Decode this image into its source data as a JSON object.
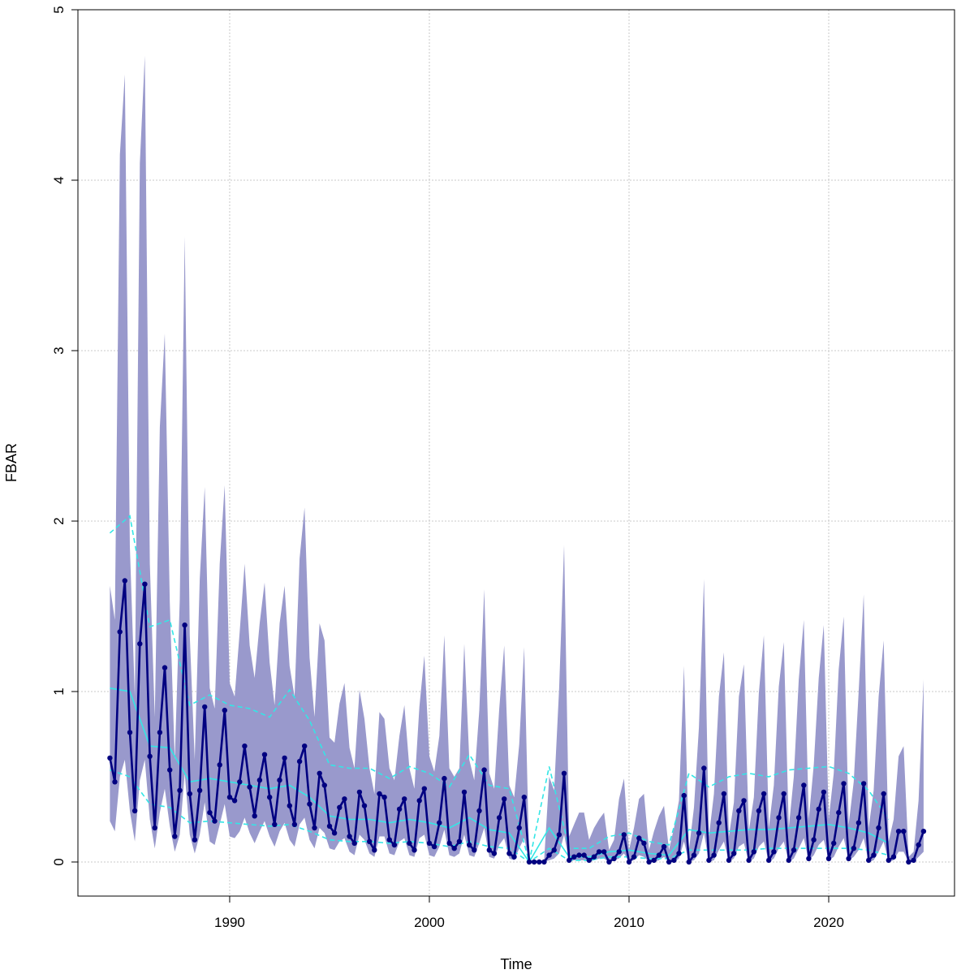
{
  "chart_data": {
    "type": "line",
    "title": "",
    "xlabel": "Time",
    "ylabel": "FBAR",
    "xlim": [
      1982.4,
      2026.3
    ],
    "ylim": [
      -0.2,
      5.0
    ],
    "x_ticks": [
      1990,
      2000,
      2010,
      2020
    ],
    "x_tick_labels": [
      "1990",
      "2000",
      "2010",
      "2020"
    ],
    "y_ticks": [
      0,
      1,
      2,
      3,
      4,
      5
    ],
    "y_tick_labels": [
      "0",
      "1",
      "2",
      "3",
      "4",
      "5"
    ],
    "grid": true,
    "legend": "none",
    "colors": {
      "band": "#9999cc",
      "main_line": "#000080",
      "smooth_lines": "#33e6e6",
      "grid": "#c8c8c8"
    },
    "series": [
      {
        "kind": "quarterly_points_line",
        "x": [
          1984.0,
          1984.25,
          1984.5,
          1984.75,
          1985.0,
          1985.25,
          1985.5,
          1985.75,
          1986.0,
          1986.25,
          1986.5,
          1986.75,
          1987.0,
          1987.25,
          1987.5,
          1987.75,
          1988.0,
          1988.25,
          1988.5,
          1988.75,
          1989.0,
          1989.25,
          1989.5,
          1989.75,
          1990.0,
          1990.25,
          1990.5,
          1990.75,
          1991.0,
          1991.25,
          1991.5,
          1991.75,
          1992.0,
          1992.25,
          1992.5,
          1992.75,
          1993.0,
          1993.25,
          1993.5,
          1993.75,
          1994.0,
          1994.25,
          1994.5,
          1994.75,
          1995.0,
          1995.25,
          1995.5,
          1995.75,
          1996.0,
          1996.25,
          1996.5,
          1996.75,
          1997.0,
          1997.25,
          1997.5,
          1997.75,
          1998.0,
          1998.25,
          1998.5,
          1998.75,
          1999.0,
          1999.25,
          1999.5,
          1999.75,
          2000.0,
          2000.25,
          2000.5,
          2000.75,
          2001.0,
          2001.25,
          2001.5,
          2001.75,
          2002.0,
          2002.25,
          2002.5,
          2002.75,
          2003.0,
          2003.25,
          2003.5,
          2003.75,
          2004.0,
          2004.25,
          2004.5,
          2004.75,
          2005.0,
          2005.25,
          2005.5,
          2005.75,
          2006.0,
          2006.25,
          2006.5,
          2006.75,
          2007.0,
          2007.25,
          2007.5,
          2007.75,
          2008.0,
          2008.25,
          2008.5,
          2008.75,
          2009.0,
          2009.25,
          2009.5,
          2009.75,
          2010.0,
          2010.25,
          2010.5,
          2010.75,
          2011.0,
          2011.25,
          2011.5,
          2011.75,
          2012.0,
          2012.25,
          2012.5,
          2012.75,
          2013.0,
          2013.25,
          2013.5,
          2013.75,
          2014.0,
          2014.25,
          2014.5,
          2014.75,
          2015.0,
          2015.25,
          2015.5,
          2015.75,
          2016.0,
          2016.25,
          2016.5,
          2016.75,
          2017.0,
          2017.25,
          2017.5,
          2017.75,
          2018.0,
          2018.25,
          2018.5,
          2018.75,
          2019.0,
          2019.25,
          2019.5,
          2019.75,
          2020.0,
          2020.25,
          2020.5,
          2020.75,
          2021.0,
          2021.25,
          2021.5,
          2021.75,
          2022.0,
          2022.25,
          2022.5,
          2022.75,
          2023.0,
          2023.25,
          2023.5,
          2023.75,
          2024.0,
          2024.25,
          2024.5,
          2024.75
        ],
        "values": [
          0.61,
          0.47,
          1.35,
          1.65,
          0.76,
          0.3,
          1.28,
          1.63,
          0.62,
          0.2,
          0.76,
          1.14,
          0.54,
          0.15,
          0.42,
          1.39,
          0.4,
          0.13,
          0.42,
          0.91,
          0.29,
          0.24,
          0.57,
          0.89,
          0.38,
          0.36,
          0.47,
          0.68,
          0.44,
          0.27,
          0.48,
          0.63,
          0.38,
          0.22,
          0.48,
          0.61,
          0.33,
          0.22,
          0.59,
          0.68,
          0.34,
          0.2,
          0.52,
          0.45,
          0.21,
          0.17,
          0.32,
          0.37,
          0.15,
          0.11,
          0.41,
          0.33,
          0.12,
          0.07,
          0.4,
          0.38,
          0.13,
          0.1,
          0.31,
          0.37,
          0.11,
          0.07,
          0.36,
          0.43,
          0.11,
          0.09,
          0.23,
          0.49,
          0.11,
          0.08,
          0.12,
          0.41,
          0.1,
          0.07,
          0.3,
          0.54,
          0.07,
          0.05,
          0.26,
          0.37,
          0.05,
          0.03,
          0.2,
          0.38,
          0.0,
          0.0,
          0.0,
          0.0,
          0.04,
          0.07,
          0.16,
          0.52,
          0.01,
          0.03,
          0.04,
          0.04,
          0.01,
          0.03,
          0.06,
          0.06,
          0.0,
          0.02,
          0.06,
          0.16,
          0.0,
          0.03,
          0.14,
          0.11,
          0.0,
          0.01,
          0.04,
          0.09,
          0.0,
          0.01,
          0.05,
          0.39,
          0.0,
          0.04,
          0.17,
          0.55,
          0.01,
          0.04,
          0.23,
          0.4,
          0.01,
          0.05,
          0.3,
          0.36,
          0.01,
          0.06,
          0.3,
          0.4,
          0.01,
          0.06,
          0.26,
          0.4,
          0.01,
          0.07,
          0.26,
          0.45,
          0.02,
          0.13,
          0.31,
          0.41,
          0.02,
          0.11,
          0.29,
          0.46,
          0.02,
          0.08,
          0.23,
          0.46,
          0.01,
          0.04,
          0.2,
          0.4,
          0.01,
          0.03,
          0.18,
          0.18,
          0.0,
          0.01,
          0.1,
          0.18
        ]
      },
      {
        "kind": "upper_band",
        "values": [
          1.62,
          1.42,
          4.15,
          4.62,
          1.85,
          0.97,
          4.1,
          4.73,
          1.75,
          0.85,
          2.55,
          3.1,
          1.52,
          0.6,
          1.54,
          3.67,
          1.33,
          0.6,
          1.66,
          2.2,
          1.02,
          0.9,
          1.75,
          2.21,
          1.05,
          0.97,
          1.35,
          1.75,
          1.27,
          1.08,
          1.4,
          1.64,
          1.17,
          0.92,
          1.4,
          1.62,
          1.15,
          0.97,
          1.78,
          2.08,
          1.2,
          0.85,
          1.4,
          1.3,
          0.73,
          0.7,
          0.93,
          1.05,
          0.67,
          0.55,
          1.01,
          0.84,
          0.55,
          0.4,
          0.88,
          0.84,
          0.55,
          0.48,
          0.74,
          0.92,
          0.55,
          0.43,
          0.91,
          1.21,
          0.62,
          0.53,
          0.74,
          1.33,
          0.55,
          0.5,
          0.55,
          1.28,
          0.6,
          0.48,
          0.89,
          1.6,
          0.52,
          0.43,
          0.9,
          1.27,
          0.45,
          0.38,
          0.69,
          1.26,
          0.01,
          0.01,
          0.01,
          0.01,
          0.5,
          0.42,
          1.02,
          1.86,
          0.15,
          0.22,
          0.29,
          0.29,
          0.13,
          0.2,
          0.25,
          0.29,
          0.07,
          0.13,
          0.37,
          0.49,
          0.07,
          0.2,
          0.37,
          0.4,
          0.07,
          0.18,
          0.27,
          0.33,
          0.07,
          0.2,
          0.36,
          1.15,
          0.07,
          0.32,
          0.79,
          1.66,
          0.15,
          0.4,
          0.97,
          1.23,
          0.15,
          0.35,
          0.97,
          1.16,
          0.18,
          0.38,
          0.99,
          1.33,
          0.2,
          0.45,
          1.03,
          1.29,
          0.2,
          0.5,
          1.07,
          1.42,
          0.25,
          0.57,
          1.08,
          1.39,
          0.25,
          0.52,
          1.13,
          1.44,
          0.22,
          0.47,
          1.0,
          1.57,
          0.2,
          0.42,
          0.97,
          1.3,
          0.12,
          0.25,
          0.62,
          0.68,
          0.03,
          0.06,
          0.36,
          1.07
        ]
      },
      {
        "kind": "lower_band",
        "values": [
          0.24,
          0.18,
          0.5,
          0.6,
          0.3,
          0.12,
          0.48,
          0.6,
          0.25,
          0.08,
          0.29,
          0.43,
          0.21,
          0.06,
          0.16,
          0.52,
          0.16,
          0.05,
          0.16,
          0.35,
          0.12,
          0.1,
          0.22,
          0.34,
          0.15,
          0.14,
          0.18,
          0.26,
          0.17,
          0.11,
          0.18,
          0.24,
          0.15,
          0.09,
          0.18,
          0.23,
          0.13,
          0.09,
          0.22,
          0.26,
          0.13,
          0.08,
          0.2,
          0.17,
          0.08,
          0.07,
          0.12,
          0.14,
          0.06,
          0.04,
          0.16,
          0.13,
          0.05,
          0.03,
          0.15,
          0.15,
          0.05,
          0.04,
          0.12,
          0.14,
          0.04,
          0.03,
          0.14,
          0.16,
          0.04,
          0.03,
          0.09,
          0.19,
          0.04,
          0.03,
          0.05,
          0.16,
          0.04,
          0.03,
          0.11,
          0.2,
          0.03,
          0.02,
          0.1,
          0.14,
          0.02,
          0.01,
          0.08,
          0.14,
          0.0,
          0.0,
          0.0,
          0.0,
          0.01,
          0.02,
          0.05,
          0.16,
          0.0,
          0.01,
          0.01,
          0.01,
          0.0,
          0.01,
          0.02,
          0.02,
          0.0,
          0.01,
          0.02,
          0.05,
          0.0,
          0.01,
          0.04,
          0.03,
          0.0,
          0.0,
          0.01,
          0.03,
          0.0,
          0.0,
          0.02,
          0.12,
          0.0,
          0.01,
          0.05,
          0.17,
          0.0,
          0.01,
          0.07,
          0.12,
          0.0,
          0.02,
          0.09,
          0.11,
          0.0,
          0.02,
          0.09,
          0.12,
          0.0,
          0.02,
          0.08,
          0.12,
          0.0,
          0.02,
          0.08,
          0.14,
          0.01,
          0.04,
          0.1,
          0.13,
          0.01,
          0.03,
          0.09,
          0.14,
          0.01,
          0.03,
          0.07,
          0.14,
          0.0,
          0.01,
          0.06,
          0.12,
          0.0,
          0.01,
          0.06,
          0.06,
          0.0,
          0.0,
          0.03,
          0.06
        ]
      },
      {
        "kind": "smooth_solid",
        "x": [
          1984.0,
          1985.0,
          1986.0,
          1987.0,
          1988.0,
          1989.0,
          1990.0,
          1991.0,
          1992.0,
          1993.0,
          1994.0,
          1995.0,
          1996.0,
          1997.0,
          1998.0,
          1999.0,
          2000.0,
          2001.0,
          2002.0,
          2003.0,
          2004.0,
          2005.0,
          2006.0,
          2007.0,
          2008.0,
          2009.0,
          2010.0,
          2011.0,
          2012.0,
          2013.0,
          2014.0,
          2015.0,
          2016.0,
          2017.0,
          2018.0,
          2019.0,
          2020.0,
          2021.0,
          2022.0,
          2023.0
        ],
        "values": [
          1.02,
          1.0,
          0.68,
          0.67,
          0.47,
          0.49,
          0.47,
          0.45,
          0.43,
          0.45,
          0.38,
          0.27,
          0.25,
          0.25,
          0.23,
          0.25,
          0.23,
          0.2,
          0.26,
          0.19,
          0.17,
          0.0,
          0.2,
          0.03,
          0.03,
          0.06,
          0.07,
          0.05,
          0.04,
          0.19,
          0.17,
          0.18,
          0.19,
          0.19,
          0.2,
          0.21,
          0.22,
          0.2,
          0.17,
          0.11
        ]
      },
      {
        "kind": "smooth_dashed_upper",
        "x": [
          1984.0,
          1985.0,
          1986.0,
          1987.0,
          1988.0,
          1989.0,
          1990.0,
          1991.0,
          1992.0,
          1993.0,
          1994.0,
          1995.0,
          1996.0,
          1997.0,
          1998.0,
          1999.0,
          2000.0,
          2001.0,
          2002.0,
          2003.0,
          2004.0,
          2005.0,
          2006.0,
          2007.0,
          2008.0,
          2009.0,
          2010.0,
          2011.0,
          2012.0,
          2013.0,
          2014.0,
          2015.0,
          2016.0,
          2017.0,
          2018.0,
          2019.0,
          2020.0,
          2021.0,
          2022.0,
          2023.0
        ],
        "values": [
          1.93,
          2.03,
          1.38,
          1.42,
          0.92,
          0.98,
          0.92,
          0.9,
          0.85,
          1.01,
          0.83,
          0.57,
          0.55,
          0.55,
          0.49,
          0.56,
          0.52,
          0.44,
          0.63,
          0.45,
          0.43,
          0.0,
          0.56,
          0.08,
          0.08,
          0.15,
          0.17,
          0.12,
          0.1,
          0.52,
          0.44,
          0.5,
          0.52,
          0.5,
          0.54,
          0.55,
          0.56,
          0.52,
          0.42,
          0.25
        ]
      },
      {
        "kind": "smooth_dashed_lower",
        "x": [
          1984.0,
          1985.0,
          1986.0,
          1987.0,
          1988.0,
          1989.0,
          1990.0,
          1991.0,
          1992.0,
          1993.0,
          1994.0,
          1995.0,
          1996.0,
          1997.0,
          1998.0,
          1999.0,
          2000.0,
          2001.0,
          2002.0,
          2003.0,
          2004.0,
          2005.0,
          2006.0,
          2007.0,
          2008.0,
          2009.0,
          2010.0,
          2011.0,
          2012.0,
          2013.0,
          2014.0,
          2015.0,
          2016.0,
          2017.0,
          2018.0,
          2019.0,
          2020.0,
          2021.0,
          2022.0,
          2023.0
        ],
        "values": [
          0.54,
          0.5,
          0.34,
          0.32,
          0.23,
          0.24,
          0.23,
          0.22,
          0.21,
          0.22,
          0.18,
          0.13,
          0.12,
          0.12,
          0.11,
          0.12,
          0.11,
          0.09,
          0.12,
          0.09,
          0.08,
          0.0,
          0.08,
          0.01,
          0.01,
          0.03,
          0.03,
          0.02,
          0.02,
          0.07,
          0.07,
          0.07,
          0.07,
          0.08,
          0.08,
          0.08,
          0.08,
          0.08,
          0.07,
          0.04
        ]
      }
    ]
  }
}
